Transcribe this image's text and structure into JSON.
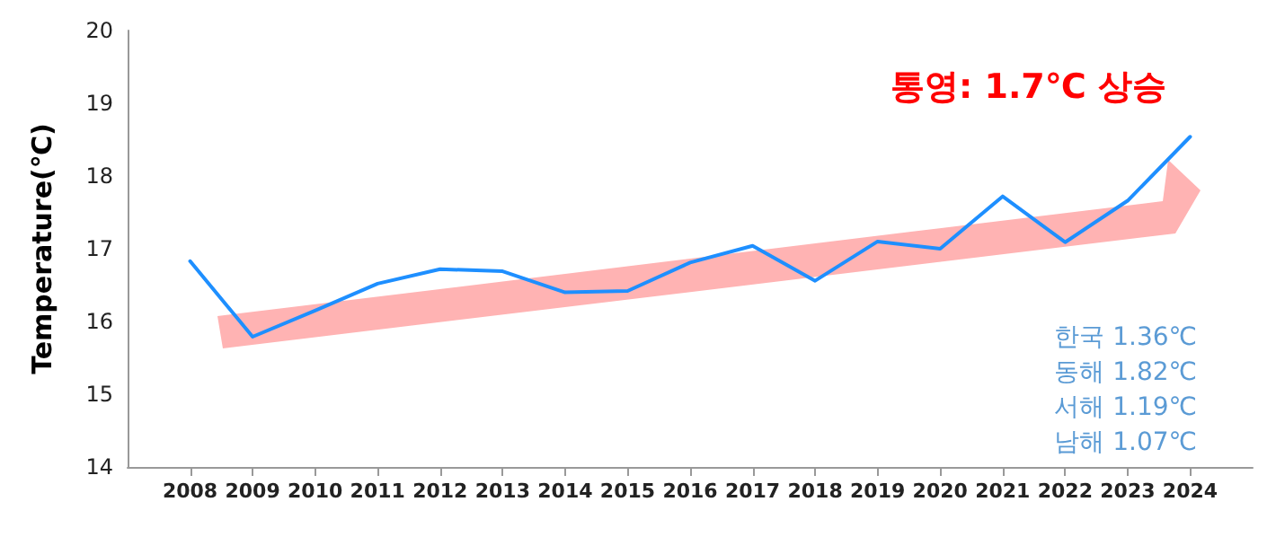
{
  "chart_data": {
    "type": "line",
    "title": "통영: 1.7℃ 상승",
    "ylabel": "Temperature(℃)",
    "x": [
      2008,
      2009,
      2010,
      2011,
      2012,
      2013,
      2014,
      2015,
      2016,
      2017,
      2018,
      2019,
      2020,
      2021,
      2022,
      2023,
      2024
    ],
    "series": [
      {
        "color": "#1e8fff",
        "values": [
          16.83,
          15.79,
          16.15,
          16.52,
          16.72,
          16.69,
          16.4,
          16.42,
          16.81,
          17.04,
          16.56,
          17.1,
          17.0,
          17.72,
          17.09,
          17.66,
          18.54
        ]
      }
    ],
    "xlim": [
      2007,
      2025
    ],
    "xticks": [
      2008,
      2009,
      2010,
      2011,
      2012,
      2013,
      2014,
      2015,
      2016,
      2017,
      2018,
      2019,
      2020,
      2021,
      2022,
      2023,
      2024
    ],
    "ylim": [
      14,
      20
    ],
    "yticks": [
      14,
      15,
      16,
      17,
      18,
      19,
      20
    ],
    "annotations": [
      "한국 1.36℃",
      "동해 1.82℃",
      "서해 1.19℃",
      "남해 1.07℃"
    ],
    "grid": false,
    "marker": "none",
    "line_style": "solid"
  }
}
